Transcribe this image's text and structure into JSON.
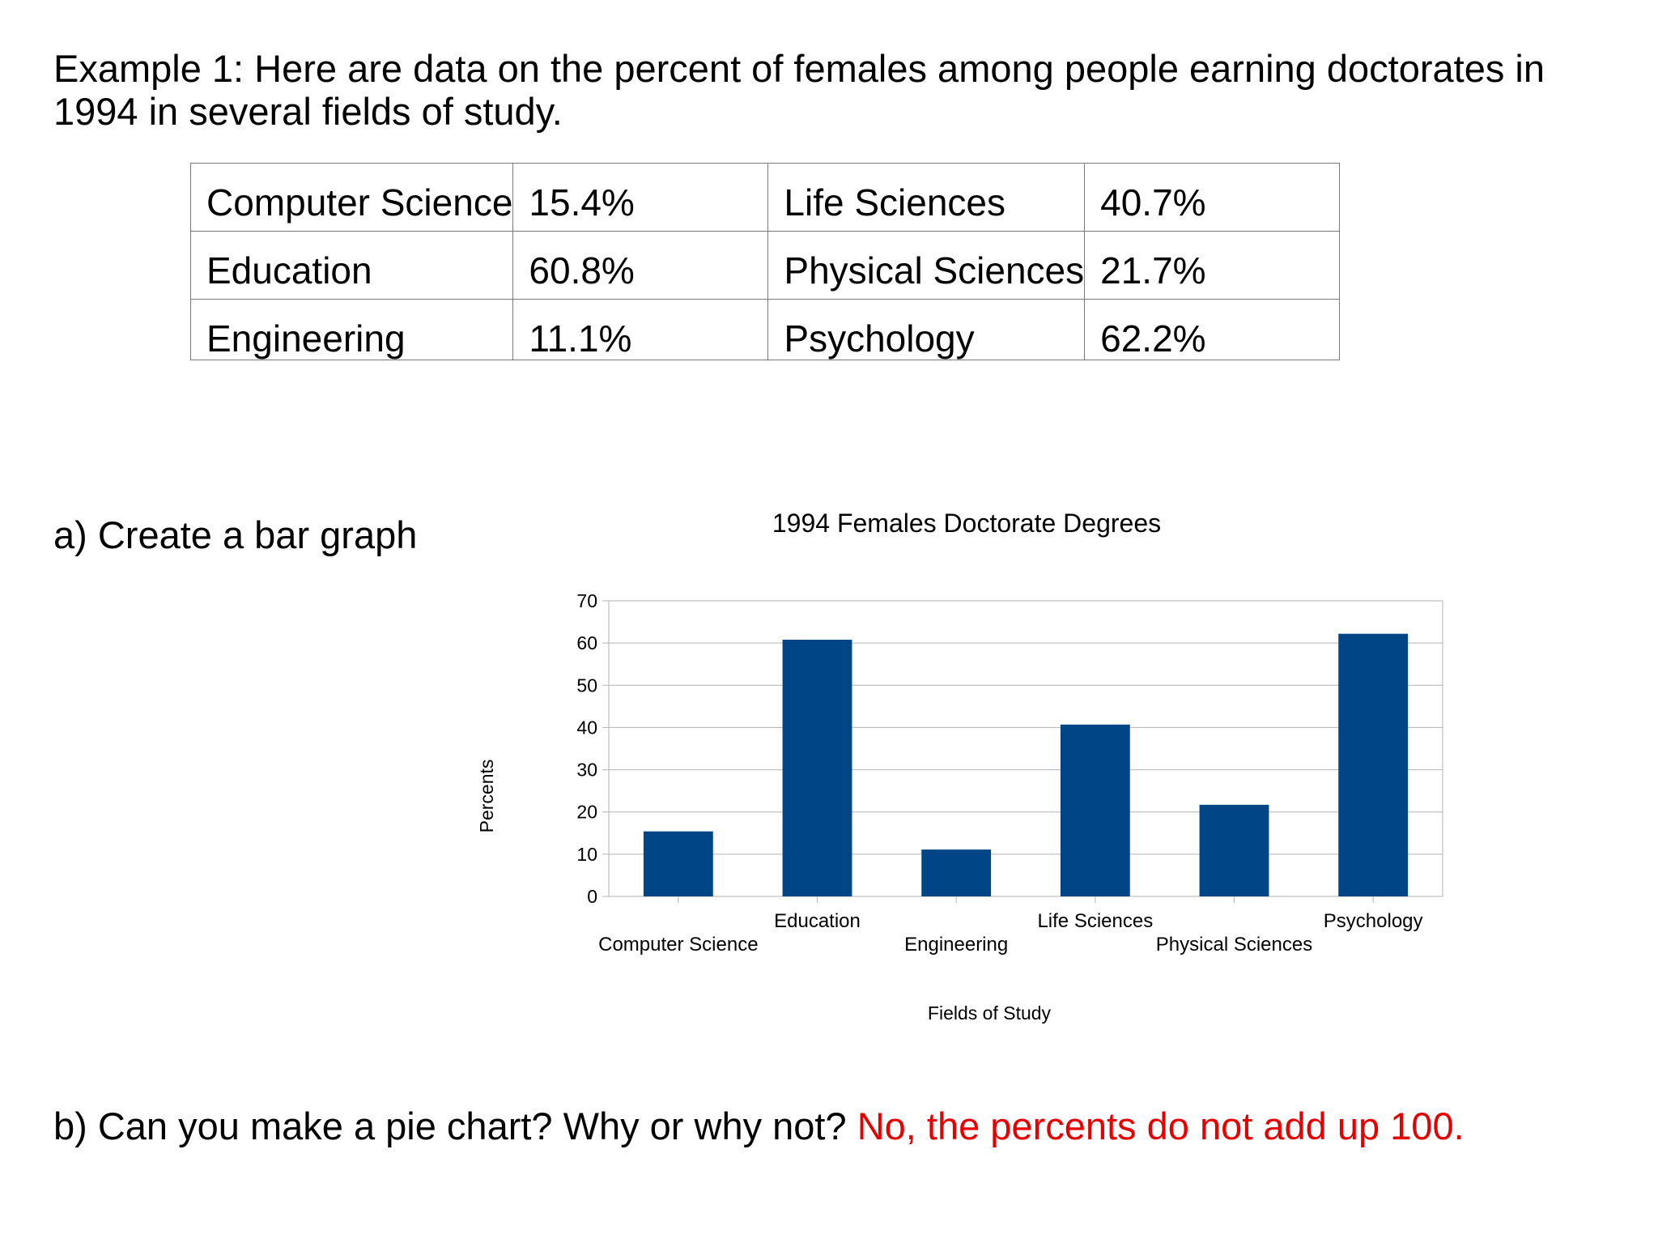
{
  "intro": "Example 1:  Here are data on the percent of females among people earning doctorates in 1994 in several fields of study.",
  "table": {
    "rows": [
      [
        {
          "field": "Computer Science",
          "value": "15.4%"
        },
        {
          "field": "Life Sciences",
          "value": "40.7%"
        }
      ],
      [
        {
          "field": "Education",
          "value": "60.8%"
        },
        {
          "field": "Physical Sciences",
          "value": "21.7%"
        }
      ],
      [
        {
          "field": "Engineering",
          "value": "11.1%"
        },
        {
          "field": "Psychology",
          "value": "62.2%"
        }
      ]
    ]
  },
  "part_a": "a) Create a bar graph",
  "part_b": {
    "question": "b) Can you make a pie chart? Why or why not?",
    "answer": "No, the percents do not add up 100."
  },
  "chart_data": {
    "type": "bar",
    "title": "1994 Females Doctorate Degrees",
    "xlabel": "Fields of Study",
    "ylabel": "Percents",
    "categories": [
      "Computer Science",
      "Education",
      "Engineering",
      "Life Sciences",
      "Physical Sciences",
      "Psychology"
    ],
    "values": [
      15.4,
      60.8,
      11.1,
      40.7,
      21.7,
      62.2
    ],
    "ylim": [
      0,
      70
    ],
    "yticks": [
      0,
      10,
      20,
      30,
      40,
      50,
      60,
      70
    ],
    "grid": true,
    "legend": "none",
    "bar_color": "#004586"
  }
}
